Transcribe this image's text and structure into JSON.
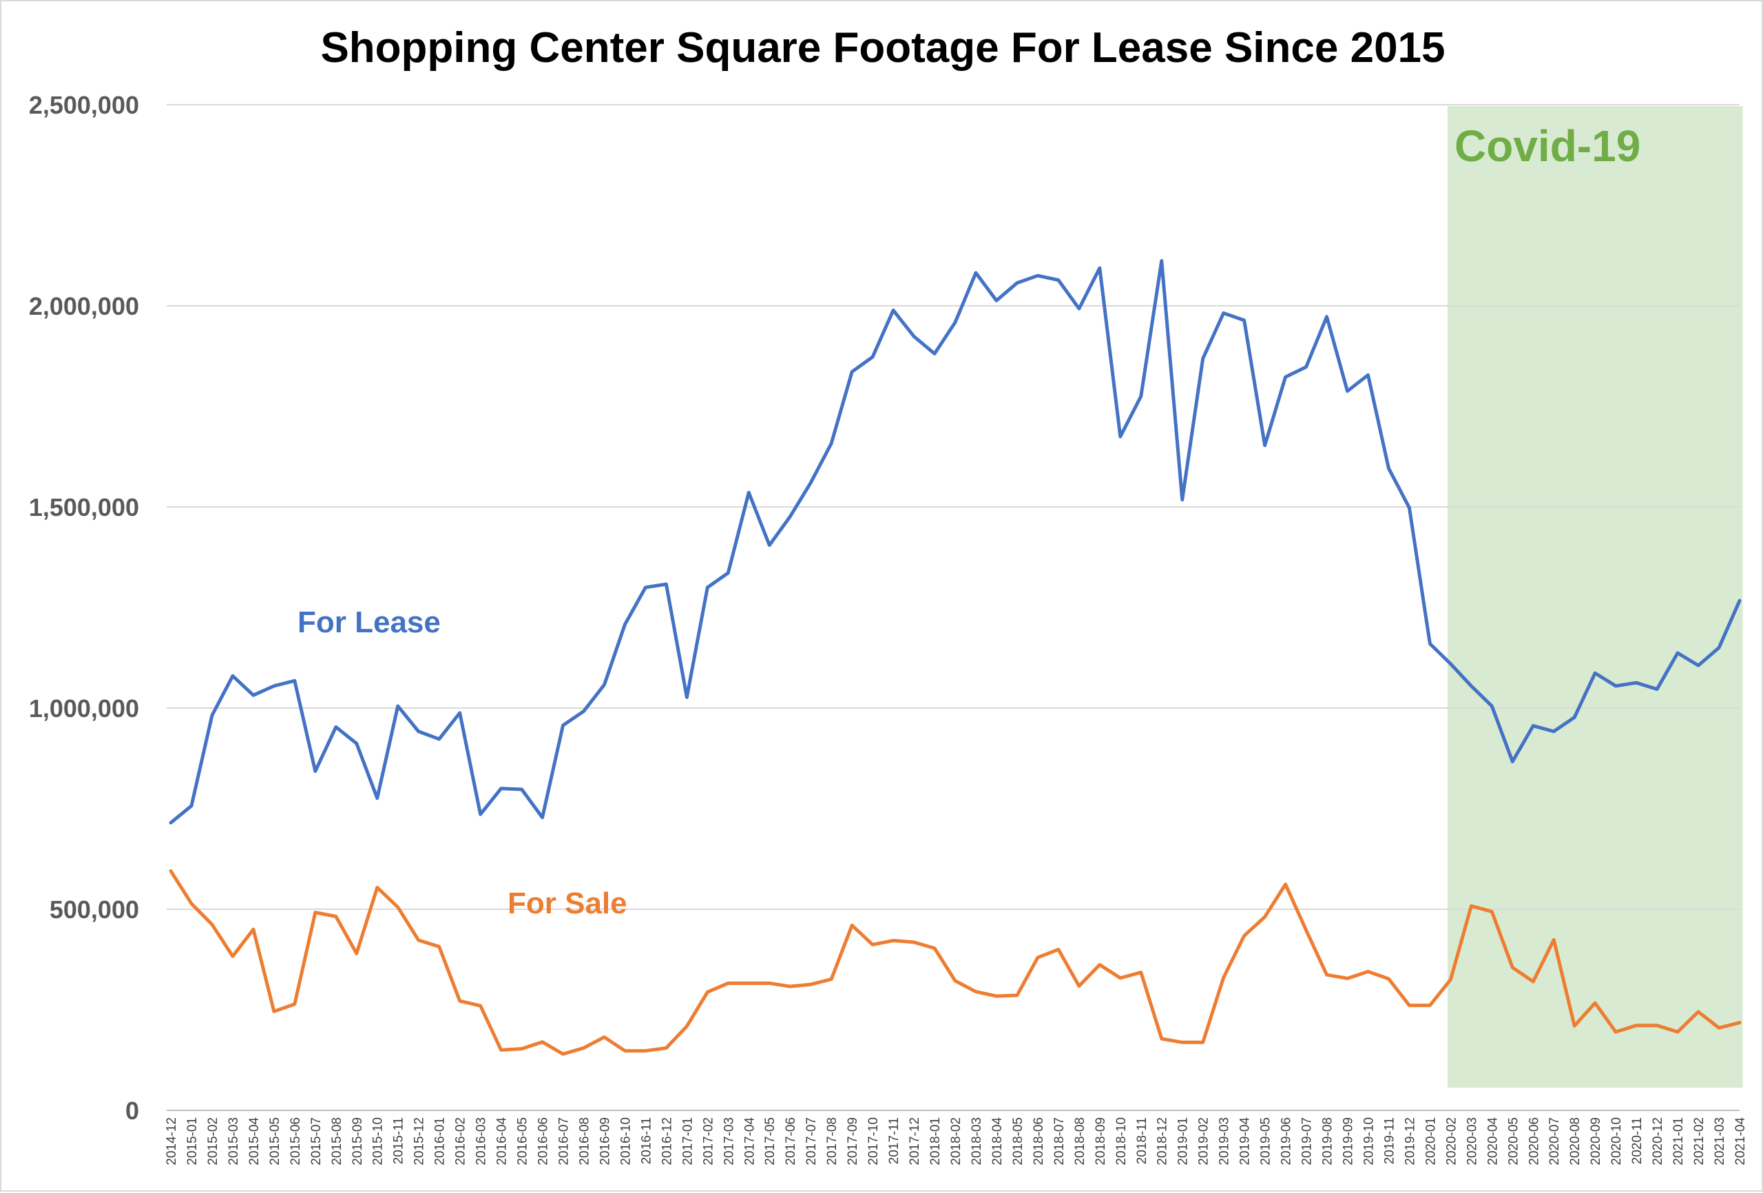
{
  "chart_data": {
    "type": "line",
    "title": "Shopping Center Square Footage For Lease Since 2015",
    "xlabel": "",
    "ylabel": "",
    "ylim": [
      0,
      2500000
    ],
    "yticks": [
      0,
      500000,
      1000000,
      1500000,
      2000000,
      2500000
    ],
    "ytick_labels": [
      "0",
      "500,000",
      "1,000,000",
      "1,500,000",
      "2,000,000",
      "2,500,000"
    ],
    "grid": true,
    "categories": [
      "2014-12",
      "2015-01",
      "2015-02",
      "2015-03",
      "2015-04",
      "2015-05",
      "2015-06",
      "2015-07",
      "2015-08",
      "2015-09",
      "2015-10",
      "2015-11",
      "2015-12",
      "2016-01",
      "2016-02",
      "2016-03",
      "2016-04",
      "2016-05",
      "2016-06",
      "2016-07",
      "2016-08",
      "2016-09",
      "2016-10",
      "2016-11",
      "2016-12",
      "2017-01",
      "2017-02",
      "2017-03",
      "2017-04",
      "2017-05",
      "2017-06",
      "2017-07",
      "2017-08",
      "2017-09",
      "2017-10",
      "2017-11",
      "2017-12",
      "2018-01",
      "2018-02",
      "2018-03",
      "2018-04",
      "2018-05",
      "2018-06",
      "2018-07",
      "2018-08",
      "2018-09",
      "2018-10",
      "2018-11",
      "2018-12",
      "2019-01",
      "2019-02",
      "2019-03",
      "2019-04",
      "2019-05",
      "2019-06",
      "2019-07",
      "2019-08",
      "2019-09",
      "2019-10",
      "2019-11",
      "2019-12",
      "2020-01",
      "2020-02",
      "2020-03",
      "2020-04",
      "2020-05",
      "2020-06",
      "2020-07",
      "2020-08",
      "2020-09",
      "2020-10",
      "2020-11",
      "2020-12",
      "2021-01",
      "2021-02",
      "2021-03",
      "2021-04"
    ],
    "series": [
      {
        "name": "For Lease",
        "color": "#4472c4",
        "values": [
          715000,
          757000,
          982000,
          1080000,
          1032000,
          1055000,
          1068000,
          843000,
          953000,
          912000,
          776000,
          1005000,
          942000,
          923000,
          988000,
          736000,
          800000,
          798000,
          728000,
          957000,
          992000,
          1058000,
          1208000,
          1300000,
          1308000,
          1027000,
          1300000,
          1336000,
          1536000,
          1405000,
          1476000,
          1560000,
          1658000,
          1836000,
          1873000,
          1989000,
          1924000,
          1881000,
          1959000,
          2082000,
          2013000,
          2057000,
          2075000,
          2064000,
          1993000,
          2094000,
          1675000,
          1775000,
          2112000,
          1518000,
          1869000,
          1982000,
          1964000,
          1653000,
          1823000,
          1848000,
          1973000,
          1788000,
          1828000,
          1596000,
          1498000,
          1160000,
          1110000,
          1055000,
          1005000,
          867000,
          956000,
          942000,
          977000,
          1087000,
          1055000,
          1063000,
          1047000,
          1137000,
          1106000,
          1150000,
          1267000
        ]
      },
      {
        "name": "For Sale",
        "color": "#ed7d31",
        "values": [
          595000,
          514000,
          462000,
          383000,
          450000,
          246000,
          264000,
          492000,
          482000,
          390000,
          554000,
          505000,
          423000,
          407000,
          272000,
          260000,
          150000,
          153000,
          170000,
          140000,
          155000,
          182000,
          148000,
          148000,
          155000,
          209000,
          294000,
          316000,
          316000,
          316000,
          308000,
          313000,
          326000,
          460000,
          412000,
          422000,
          418000,
          403000,
          322000,
          295000,
          284000,
          286000,
          380000,
          400000,
          309000,
          362000,
          329000,
          343000,
          178000,
          169000,
          169000,
          330000,
          434000,
          481000,
          562000,
          448000,
          337000,
          328000,
          345000,
          327000,
          261000,
          261000,
          325000,
          508000,
          494000,
          355000,
          320000,
          424000,
          210000,
          267000,
          195000,
          211000,
          211000,
          195000,
          245000,
          205000,
          218000
        ]
      }
    ],
    "series_labels": {
      "lease": "For Lease",
      "sale": "For Sale",
      "lease_color": "#4472c4",
      "sale_color": "#ed7d31"
    },
    "shaded_region": {
      "label": "Covid-19",
      "start": "2020-02",
      "end": "2021-04",
      "fill_color": "#d9ead3",
      "label_color": "#70ad47"
    }
  }
}
